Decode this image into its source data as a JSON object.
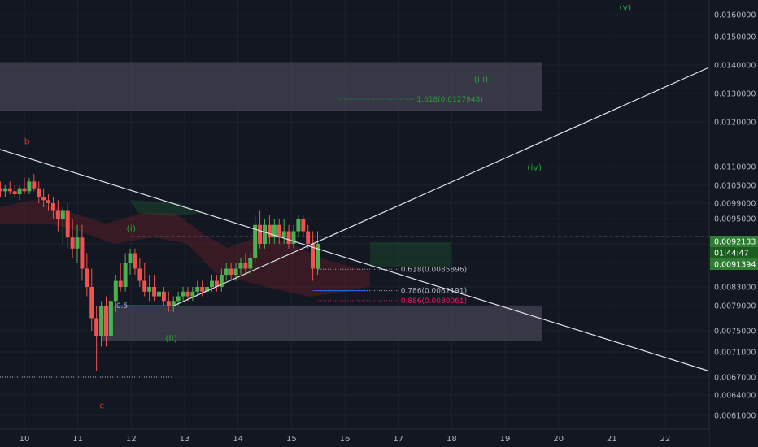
{
  "colors": {
    "background": "#131722",
    "grid": "#1e222d",
    "axis_text": "#b2b5be",
    "up": "#26a69a",
    "up_candle": "#4caf50",
    "down_candle": "#ef5350",
    "wave_green": "#2e9b3a",
    "wave_red": "#d32f2f",
    "zone": "#434651",
    "trendline": "#e0e3eb",
    "price_tag": "#2e7d32",
    "fib_pink": "#e91e63"
  },
  "chart_data": {
    "type": "candlestick",
    "y_axis": {
      "min": 0.0059,
      "max": 0.0165,
      "ticks": [
        0.016,
        0.015,
        0.014,
        0.013,
        0.012,
        0.011,
        0.0105,
        0.0099,
        0.0095,
        0.0091,
        0.0087,
        0.0083,
        0.0079,
        0.0075,
        0.0071,
        0.0067,
        0.0064,
        0.0061
      ],
      "tick_labels": [
        "0.0160000",
        "0.0150000",
        "0.0140000",
        "0.0130000",
        "0.0120000",
        "0.0110000",
        "0.0105000",
        "0.0099000",
        "0.0095000",
        "0.0091000",
        "0.0087000",
        "0.0083000",
        "0.0079000",
        "0.0075000",
        "0.0071000",
        "0.0067000",
        "0.0064000",
        "0.0061000"
      ]
    },
    "x_axis": {
      "ticks": [
        10,
        11,
        12,
        13,
        14,
        15,
        16,
        17,
        18,
        19,
        20,
        21,
        22
      ],
      "tick_labels": [
        "10",
        "11",
        "12",
        "13",
        "14",
        "15",
        "16",
        "17",
        "18",
        "19",
        "20",
        "21",
        "22"
      ]
    },
    "candles": [
      {
        "day": 9.55,
        "o": 0.0104,
        "h": 0.0106,
        "l": 0.0101,
        "c": 0.0103
      },
      {
        "day": 9.64,
        "o": 0.0103,
        "h": 0.0105,
        "l": 0.0101,
        "c": 0.0104
      },
      {
        "day": 9.73,
        "o": 0.0104,
        "h": 0.0106,
        "l": 0.0102,
        "c": 0.0103
      },
      {
        "day": 9.82,
        "o": 0.0103,
        "h": 0.0105,
        "l": 0.0101,
        "c": 0.0102
      },
      {
        "day": 9.91,
        "o": 0.0102,
        "h": 0.0105,
        "l": 0.01,
        "c": 0.0104
      },
      {
        "day": 10.0,
        "o": 0.0104,
        "h": 0.0107,
        "l": 0.0102,
        "c": 0.0103
      },
      {
        "day": 10.09,
        "o": 0.0103,
        "h": 0.0107,
        "l": 0.0102,
        "c": 0.0106
      },
      {
        "day": 10.18,
        "o": 0.0106,
        "h": 0.0108,
        "l": 0.0103,
        "c": 0.0104
      },
      {
        "day": 10.27,
        "o": 0.0104,
        "h": 0.0106,
        "l": 0.0099,
        "c": 0.0101
      },
      {
        "day": 10.36,
        "o": 0.0101,
        "h": 0.0104,
        "l": 0.0098,
        "c": 0.01
      },
      {
        "day": 10.45,
        "o": 0.01,
        "h": 0.0102,
        "l": 0.0097,
        "c": 0.0099
      },
      {
        "day": 10.54,
        "o": 0.0099,
        "h": 0.0101,
        "l": 0.0095,
        "c": 0.0097
      },
      {
        "day": 10.63,
        "o": 0.0097,
        "h": 0.01,
        "l": 0.0093,
        "c": 0.0095
      },
      {
        "day": 10.72,
        "o": 0.0095,
        "h": 0.0098,
        "l": 0.0091,
        "c": 0.0097
      },
      {
        "day": 10.81,
        "o": 0.0097,
        "h": 0.0099,
        "l": 0.009,
        "c": 0.0092
      },
      {
        "day": 10.9,
        "o": 0.0092,
        "h": 0.0095,
        "l": 0.0088,
        "c": 0.009
      },
      {
        "day": 10.99,
        "o": 0.009,
        "h": 0.0094,
        "l": 0.0087,
        "c": 0.0092
      },
      {
        "day": 11.08,
        "o": 0.0092,
        "h": 0.0094,
        "l": 0.0084,
        "c": 0.0086
      },
      {
        "day": 11.17,
        "o": 0.0086,
        "h": 0.0089,
        "l": 0.0081,
        "c": 0.0083
      },
      {
        "day": 11.26,
        "o": 0.0083,
        "h": 0.0086,
        "l": 0.0075,
        "c": 0.0077
      },
      {
        "day": 11.35,
        "o": 0.0077,
        "h": 0.0079,
        "l": 0.0068,
        "c": 0.0074
      },
      {
        "day": 11.44,
        "o": 0.0074,
        "h": 0.008,
        "l": 0.0072,
        "c": 0.0079
      },
      {
        "day": 11.53,
        "o": 0.0079,
        "h": 0.0081,
        "l": 0.0072,
        "c": 0.0074
      },
      {
        "day": 11.62,
        "o": 0.0074,
        "h": 0.0082,
        "l": 0.0073,
        "c": 0.008
      },
      {
        "day": 11.71,
        "o": 0.008,
        "h": 0.0085,
        "l": 0.0078,
        "c": 0.0084
      },
      {
        "day": 11.8,
        "o": 0.0084,
        "h": 0.0087,
        "l": 0.0082,
        "c": 0.0083
      },
      {
        "day": 11.89,
        "o": 0.0083,
        "h": 0.0089,
        "l": 0.0082,
        "c": 0.0087
      },
      {
        "day": 11.98,
        "o": 0.0087,
        "h": 0.009,
        "l": 0.0085,
        "c": 0.0089
      },
      {
        "day": 12.07,
        "o": 0.0089,
        "h": 0.009,
        "l": 0.0085,
        "c": 0.0086
      },
      {
        "day": 12.16,
        "o": 0.0086,
        "h": 0.0088,
        "l": 0.0083,
        "c": 0.0084
      },
      {
        "day": 12.25,
        "o": 0.0084,
        "h": 0.0087,
        "l": 0.0081,
        "c": 0.0082
      },
      {
        "day": 12.34,
        "o": 0.0082,
        "h": 0.0085,
        "l": 0.008,
        "c": 0.0083
      },
      {
        "day": 12.43,
        "o": 0.0083,
        "h": 0.0085,
        "l": 0.008,
        "c": 0.0081
      },
      {
        "day": 12.52,
        "o": 0.0081,
        "h": 0.0083,
        "l": 0.0079,
        "c": 0.0082
      },
      {
        "day": 12.61,
        "o": 0.0082,
        "h": 0.0083,
        "l": 0.0079,
        "c": 0.008
      },
      {
        "day": 12.7,
        "o": 0.008,
        "h": 0.0082,
        "l": 0.0078,
        "c": 0.0079
      },
      {
        "day": 12.79,
        "o": 0.0079,
        "h": 0.0081,
        "l": 0.0078,
        "c": 0.008
      },
      {
        "day": 12.88,
        "o": 0.008,
        "h": 0.0082,
        "l": 0.0079,
        "c": 0.0081
      },
      {
        "day": 12.97,
        "o": 0.0081,
        "h": 0.0083,
        "l": 0.008,
        "c": 0.0082
      },
      {
        "day": 13.06,
        "o": 0.0082,
        "h": 0.0083,
        "l": 0.008,
        "c": 0.0081
      },
      {
        "day": 13.15,
        "o": 0.0081,
        "h": 0.0083,
        "l": 0.008,
        "c": 0.0082
      },
      {
        "day": 13.24,
        "o": 0.0082,
        "h": 0.0084,
        "l": 0.0081,
        "c": 0.0083
      },
      {
        "day": 13.33,
        "o": 0.0083,
        "h": 0.0084,
        "l": 0.0081,
        "c": 0.0082
      },
      {
        "day": 13.42,
        "o": 0.0082,
        "h": 0.0084,
        "l": 0.0081,
        "c": 0.0083
      },
      {
        "day": 13.51,
        "o": 0.0083,
        "h": 0.0085,
        "l": 0.0082,
        "c": 0.0084
      },
      {
        "day": 13.6,
        "o": 0.0084,
        "h": 0.0085,
        "l": 0.0082,
        "c": 0.0083
      },
      {
        "day": 13.69,
        "o": 0.0083,
        "h": 0.0086,
        "l": 0.0082,
        "c": 0.0085
      },
      {
        "day": 13.78,
        "o": 0.0085,
        "h": 0.0087,
        "l": 0.0084,
        "c": 0.0086
      },
      {
        "day": 13.87,
        "o": 0.0086,
        "h": 0.0087,
        "l": 0.0084,
        "c": 0.0085
      },
      {
        "day": 13.96,
        "o": 0.0085,
        "h": 0.0087,
        "l": 0.0084,
        "c": 0.0086
      },
      {
        "day": 14.05,
        "o": 0.0086,
        "h": 0.0088,
        "l": 0.0085,
        "c": 0.0087
      },
      {
        "day": 14.14,
        "o": 0.0087,
        "h": 0.0089,
        "l": 0.0085,
        "c": 0.0086
      },
      {
        "day": 14.23,
        "o": 0.0086,
        "h": 0.0089,
        "l": 0.0085,
        "c": 0.0088
      },
      {
        "day": 14.32,
        "o": 0.0088,
        "h": 0.0096,
        "l": 0.0087,
        "c": 0.0094
      },
      {
        "day": 14.41,
        "o": 0.0094,
        "h": 0.0097,
        "l": 0.009,
        "c": 0.0091
      },
      {
        "day": 14.5,
        "o": 0.0091,
        "h": 0.0095,
        "l": 0.009,
        "c": 0.0094
      },
      {
        "day": 14.59,
        "o": 0.0094,
        "h": 0.0096,
        "l": 0.0091,
        "c": 0.0092
      },
      {
        "day": 14.68,
        "o": 0.0092,
        "h": 0.0095,
        "l": 0.0091,
        "c": 0.0094
      },
      {
        "day": 14.77,
        "o": 0.0094,
        "h": 0.0095,
        "l": 0.0091,
        "c": 0.0092
      },
      {
        "day": 14.86,
        "o": 0.0092,
        "h": 0.0095,
        "l": 0.0091,
        "c": 0.0093
      },
      {
        "day": 14.95,
        "o": 0.0093,
        "h": 0.0094,
        "l": 0.009,
        "c": 0.0091
      },
      {
        "day": 15.04,
        "o": 0.0091,
        "h": 0.0094,
        "l": 0.009,
        "c": 0.0093
      },
      {
        "day": 15.13,
        "o": 0.0093,
        "h": 0.0096,
        "l": 0.0092,
        "c": 0.0095
      },
      {
        "day": 15.22,
        "o": 0.0095,
        "h": 0.0096,
        "l": 0.0092,
        "c": 0.0093
      },
      {
        "day": 15.31,
        "o": 0.0093,
        "h": 0.0094,
        "l": 0.009,
        "c": 0.0091
      },
      {
        "day": 15.4,
        "o": 0.0091,
        "h": 0.0093,
        "l": 0.0084,
        "c": 0.0086
      },
      {
        "day": 15.49,
        "o": 0.0086,
        "h": 0.0093,
        "l": 0.0085,
        "c": 0.0091
      }
    ],
    "zones": [
      {
        "from": 9.5,
        "to": 19.7,
        "low": 0.0124,
        "high": 0.0141
      },
      {
        "from": 11.45,
        "to": 19.7,
        "low": 0.0073,
        "high": 0.0079
      }
    ],
    "trendlines": [
      {
        "x1": 9.5,
        "y1": 0.0114,
        "x2": 22.8,
        "y2": 0.0068
      },
      {
        "x1": 12.8,
        "y1": 0.0079,
        "x2": 22.8,
        "y2": 0.0139
      }
    ],
    "dotted_levels": [
      {
        "price": 0.0067,
        "from": 9.5,
        "to": 12.75,
        "color": "#b2b5be"
      }
    ],
    "horizontal_dashed_level": {
      "price": 0.0092133
    },
    "fib_levels": [
      {
        "label": "1.618(0.0127948)",
        "price": 0.0127948,
        "color": "#2e9b3a",
        "from": 15.9,
        "to": 17.3
      },
      {
        "label": "0.618(0.0085896)",
        "price": 0.0085896,
        "color": "#b2b5be",
        "from": 15.5,
        "to": 17.0
      },
      {
        "label": "0.786(0.0082191)",
        "price": 0.0082191,
        "color": "#b2b5be",
        "from": 15.5,
        "to": 17.0
      },
      {
        "label": "0.886(0.0080061)",
        "price": 0.0080061,
        "color": "#e91e63",
        "from": 15.5,
        "to": 17.0
      }
    ],
    "half_level": {
      "label": "0.5",
      "price": 0.0079
    },
    "wave_labels": [
      {
        "text": "b",
        "day": 10.05,
        "price": 0.0115,
        "color": "#d32f2f"
      },
      {
        "text": "c",
        "day": 11.45,
        "price": 0.0062,
        "color": "#d32f2f"
      },
      {
        "text": "(i)",
        "day": 12.0,
        "price": 0.0093,
        "color": "#2e9b3a"
      },
      {
        "text": "(ii)",
        "day": 12.75,
        "price": 0.0073,
        "color": "#2e9b3a"
      },
      {
        "text": "(iii)",
        "day": 18.55,
        "price": 0.0134,
        "color": "#2e9b3a"
      },
      {
        "text": "(iv)",
        "day": 19.55,
        "price": 0.0109,
        "color": "#2e9b3a"
      },
      {
        "text": "(v)",
        "day": 21.25,
        "price": 0.0162,
        "color": "#2e9b3a"
      }
    ],
    "price_tags": [
      {
        "label": "0.0092133",
        "price": 0.0092133,
        "color": "#2e7d32"
      },
      {
        "label": "01:44:47",
        "price": 0.0091749,
        "color": "#1b5e20"
      },
      {
        "label": "0.0091394",
        "price": 0.0091394,
        "color": "#2e7d32"
      }
    ]
  }
}
